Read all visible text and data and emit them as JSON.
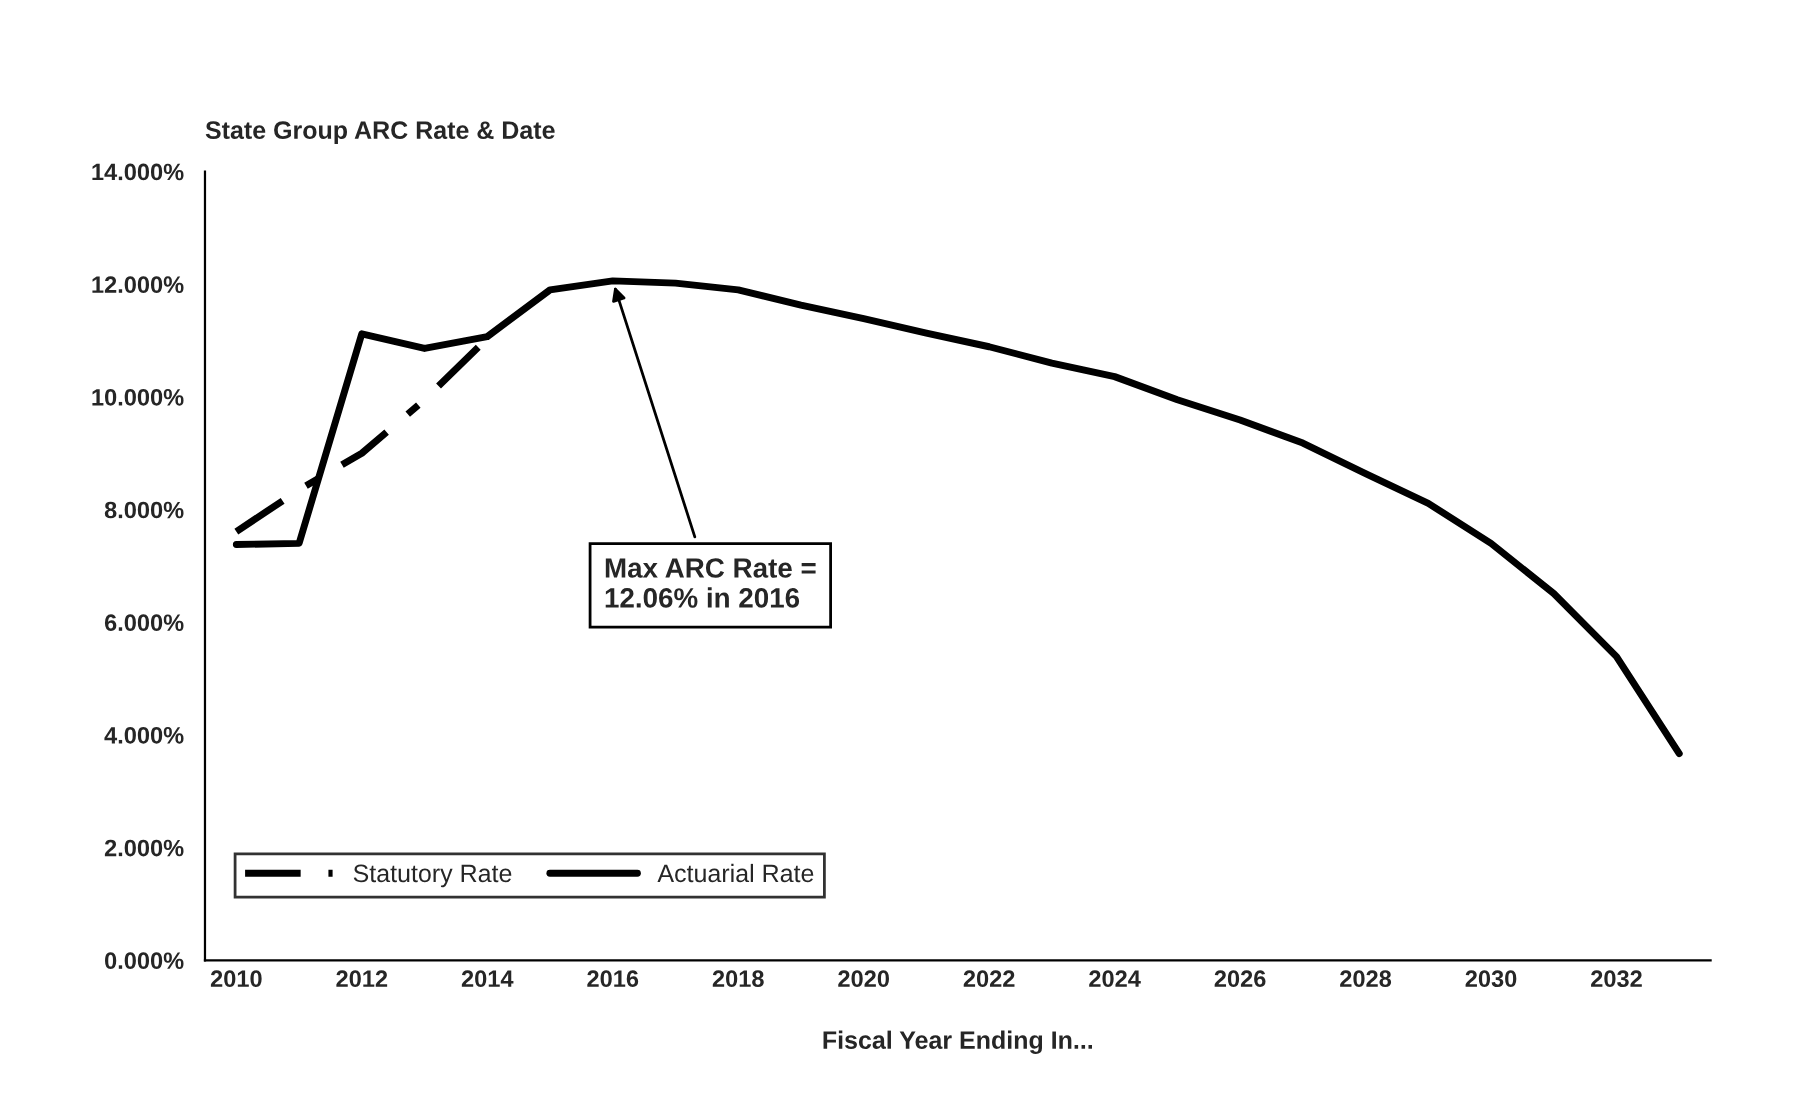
{
  "chart_data": {
    "type": "line",
    "title": "State Group ARC Rate & Date",
    "xlabel": "Fiscal Year Ending In...",
    "categories": [
      "2010",
      null,
      "2012",
      null,
      "2014",
      null,
      "2016",
      null,
      "2018",
      null,
      "2020",
      null,
      "2022",
      null,
      "2024",
      null,
      "2026",
      null,
      "2028",
      null,
      "2030",
      null,
      "2032",
      null
    ],
    "series": [
      {
        "name": "Statutory Rate",
        "color": "#000000",
        "line_style": "dashed",
        "values": [
          7.61,
          8.35,
          9.0,
          9.95,
          11.04,
          null,
          null,
          null,
          null,
          null,
          null,
          null,
          null,
          null,
          null,
          null,
          null,
          null,
          null,
          null,
          null,
          null,
          null,
          null
        ]
      },
      {
        "name": "Actuarial Rate",
        "color": "#000000",
        "line_style": "solid",
        "values": [
          7.38,
          7.4,
          11.12,
          10.86,
          11.07,
          11.9,
          12.06,
          12.02,
          11.9,
          11.63,
          11.39,
          11.13,
          10.89,
          10.6,
          10.36,
          9.95,
          9.59,
          9.18,
          8.64,
          8.11,
          7.4,
          6.51,
          5.39,
          3.67
        ]
      }
    ],
    "ylim": [
      0,
      14
    ],
    "yticks": [
      {
        "value": 0,
        "label": "0.000%"
      },
      {
        "value": 2,
        "label": "2.000%"
      },
      {
        "value": 4,
        "label": "4.000%"
      },
      {
        "value": 6,
        "label": "6.000%"
      },
      {
        "value": 8,
        "label": "8.000%"
      },
      {
        "value": 10,
        "label": "10.000%"
      },
      {
        "value": 12,
        "label": "12.000%"
      },
      {
        "value": 14,
        "label": "14.000%"
      }
    ],
    "annotations": [
      {
        "text": "Max ARC Rate =\n12.06% in 2016",
        "x": "2016",
        "y": 12.06
      }
    ],
    "legend": "bottom left",
    "grid": false,
    "marker": "none"
  }
}
